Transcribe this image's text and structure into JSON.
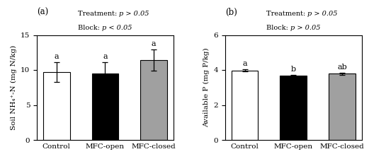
{
  "chart_data": [
    {
      "type": "bar",
      "label": "(a)",
      "categories": [
        "Control",
        "MFC-open",
        "MFC-closed"
      ],
      "values": [
        9.7,
        9.5,
        11.4
      ],
      "errors": [
        1.4,
        1.65,
        1.5
      ],
      "colors": [
        "white",
        "black",
        "#a0a0a0"
      ],
      "sig_labels": [
        "a",
        "a",
        "a"
      ],
      "ylabel": "Soil NH₄⁺-N (mg N/kg)",
      "ylim": [
        0,
        15
      ],
      "yticks": [
        0,
        5,
        10,
        15
      ],
      "annotations": [
        {
          "text": "Treatment: ",
          "italic": "p > 0.05"
        },
        {
          "text": "Block: ",
          "italic": "p < 0.05"
        }
      ]
    },
    {
      "type": "bar",
      "label": "(b)",
      "categories": [
        "Control",
        "MFC-open",
        "MFC-closed"
      ],
      "values": [
        3.97,
        3.68,
        3.78
      ],
      "errors": [
        0.07,
        0.055,
        0.07
      ],
      "colors": [
        "white",
        "black",
        "#a0a0a0"
      ],
      "sig_labels": [
        "a",
        "b",
        "ab"
      ],
      "ylabel": "Available P (mg P/kg)",
      "ylim": [
        0,
        6
      ],
      "yticks": [
        0,
        2,
        4,
        6
      ],
      "annotations": [
        {
          "text": "Treatment: ",
          "italic": "p > 0.05"
        },
        {
          "text": "Block: ",
          "italic": "p > 0.05"
        }
      ]
    }
  ]
}
